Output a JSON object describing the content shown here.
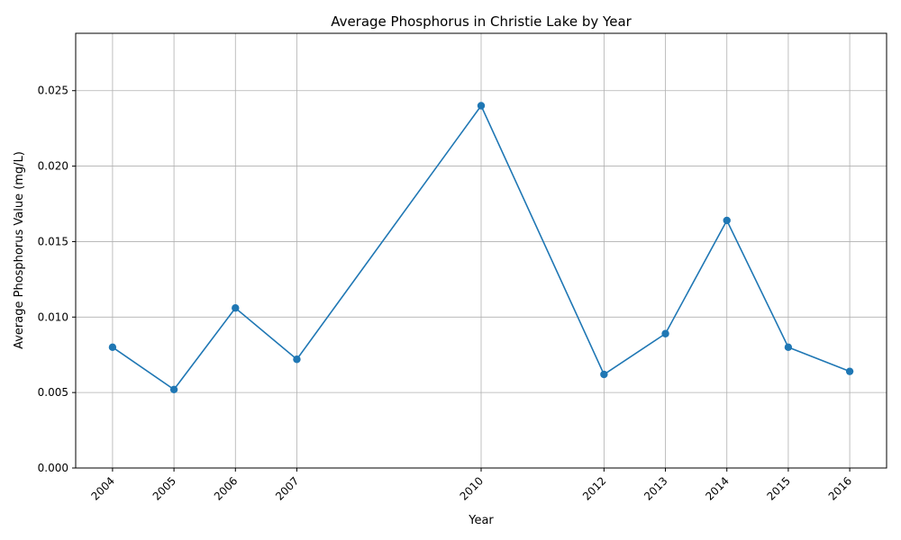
{
  "chart_data": {
    "type": "line",
    "title": "Average Phosphorus in Christie Lake by Year",
    "xlabel": "Year",
    "ylabel": "Average Phosphorus Value (mg/L)",
    "x": [
      2004,
      2005,
      2006,
      2007,
      2010,
      2012,
      2013,
      2014,
      2015,
      2016
    ],
    "x_tick_labels": [
      "2004",
      "2005",
      "2006",
      "2007",
      "2010",
      "2012",
      "2013",
      "2014",
      "2015",
      "2016"
    ],
    "series": [
      {
        "values": [
          0.008,
          0.0052,
          0.0106,
          0.0072,
          0.024,
          0.0062,
          0.0089,
          0.0164,
          0.008,
          0.0064
        ],
        "color": "#1f77b4",
        "marker": "circle"
      }
    ],
    "xlim": [
      2003.4,
      2016.6
    ],
    "ylim": [
      0,
      0.0288
    ],
    "y_ticks": [
      0,
      0.005,
      0.01,
      0.015,
      0.02,
      0.025
    ],
    "y_tick_labels": [
      "0.000",
      "0.005",
      "0.010",
      "0.015",
      "0.020",
      "0.025"
    ],
    "grid": true,
    "grid_color": "#b0b0b0",
    "x_tick_rotation_deg": 45
  }
}
